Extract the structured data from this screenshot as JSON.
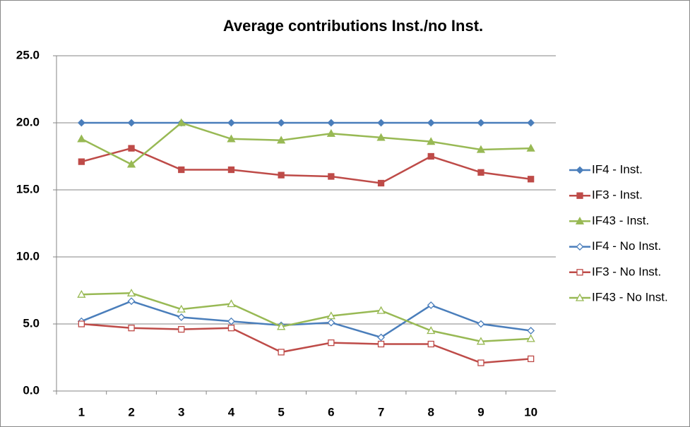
{
  "chart_data": {
    "type": "line",
    "title": "Average contributions Inst./no Inst.",
    "categories": [
      "1",
      "2",
      "3",
      "4",
      "5",
      "6",
      "7",
      "8",
      "9",
      "10"
    ],
    "ylim": [
      0,
      25
    ],
    "yticks": [
      {
        "value": 0,
        "label": "0.0"
      },
      {
        "value": 5,
        "label": "5.0"
      },
      {
        "value": 10,
        "label": "10.0"
      },
      {
        "value": 15,
        "label": "15.0"
      },
      {
        "value": 20,
        "label": "20.0"
      },
      {
        "value": 25,
        "label": "25.0"
      }
    ],
    "grid": true,
    "legend": "right",
    "series": [
      {
        "name": "IF4 - Inst.",
        "color": "#4a7ebb",
        "marker": "diamond",
        "filled": true,
        "values": [
          20,
          20,
          20,
          20,
          20,
          20,
          20,
          20,
          20,
          20
        ]
      },
      {
        "name": "IF3 - Inst.",
        "color": "#be4b48",
        "marker": "square",
        "filled": true,
        "values": [
          17.1,
          18.1,
          16.5,
          16.5,
          16.1,
          16.0,
          15.5,
          17.5,
          16.3,
          15.8
        ]
      },
      {
        "name": "IF43 - Inst.",
        "color": "#98b954",
        "marker": "triangle",
        "filled": true,
        "values": [
          18.8,
          16.9,
          20.0,
          18.8,
          18.7,
          19.2,
          18.9,
          18.6,
          18.0,
          18.1
        ]
      },
      {
        "name": "IF4 - No Inst.",
        "color": "#4a7ebb",
        "marker": "diamond",
        "filled": false,
        "values": [
          5.2,
          6.7,
          5.5,
          5.2,
          4.9,
          5.1,
          4.0,
          6.4,
          5.0,
          4.5
        ]
      },
      {
        "name": "IF3 - No Inst.",
        "color": "#be4b48",
        "marker": "square",
        "filled": false,
        "values": [
          5.0,
          4.7,
          4.6,
          4.7,
          2.9,
          3.6,
          3.5,
          3.5,
          2.1,
          2.4
        ]
      },
      {
        "name": "IF43 - No Inst.",
        "color": "#98b954",
        "marker": "triangle",
        "filled": false,
        "values": [
          7.2,
          7.3,
          6.1,
          6.5,
          4.8,
          5.6,
          6.0,
          4.5,
          3.7,
          3.9
        ]
      }
    ]
  }
}
